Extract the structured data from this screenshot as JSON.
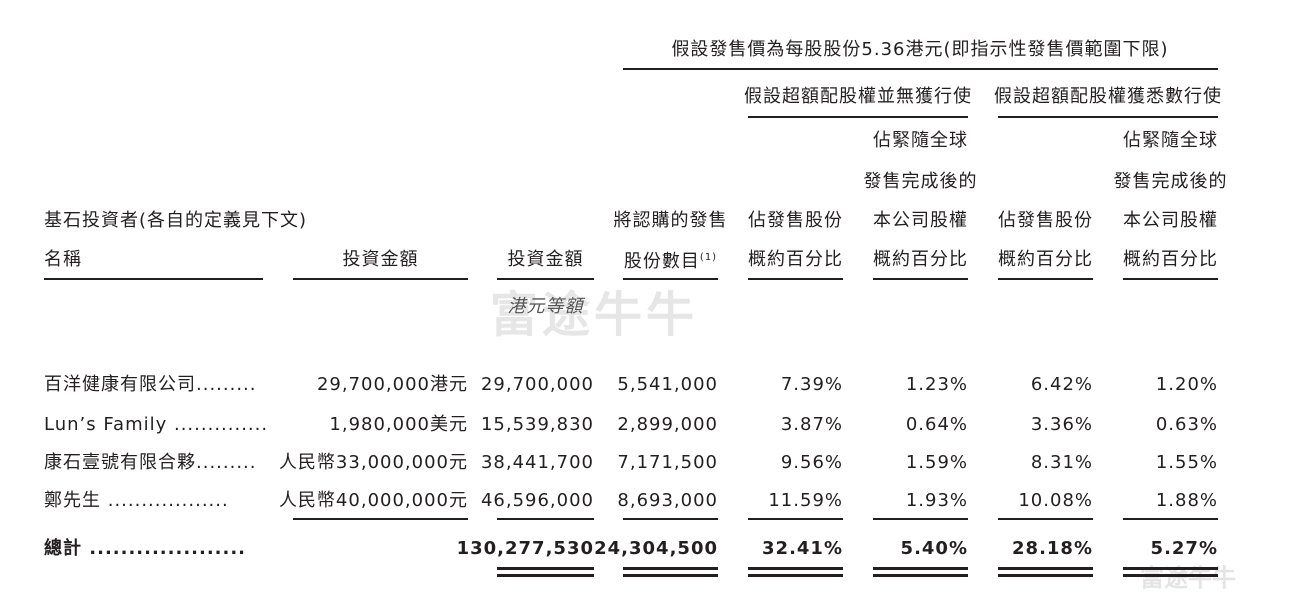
{
  "table": {
    "group_header": "假設發售價為每股股份5.36港元(即指示性發售價範圍下限)",
    "subgroups": [
      "假設超額配股權並無獲行使",
      "假設超額配股權獲悉數行使"
    ],
    "columns": [
      {
        "lines": [
          "基石投資者(各自的定義見下文)",
          "名稱"
        ]
      },
      {
        "lines": [
          "投資金額"
        ]
      },
      {
        "lines": [
          "投資金額"
        ],
        "unit": "港元等額"
      },
      {
        "lines": [
          "將認購的發售",
          "股份數目"
        ],
        "note": "(1)"
      },
      {
        "lines": [
          "佔發售股份",
          "概約百分比"
        ]
      },
      {
        "lines": [
          "佔緊隨全球",
          "發售完成後的",
          "本公司股權",
          "概約百分比"
        ]
      },
      {
        "lines": [
          "佔發售股份",
          "概約百分比"
        ]
      },
      {
        "lines": [
          "佔緊隨全球",
          "發售完成後的",
          "本公司股權",
          "概約百分比"
        ]
      }
    ],
    "rows": [
      [
        "百洋健康有限公司.........",
        "29,700,000港元",
        "29,700,000",
        "5,541,000",
        "7.39%",
        "1.23%",
        "6.42%",
        "1.20%"
      ],
      [
        "Lun’s Family ..............",
        "1,980,000美元",
        "15,539,830",
        "2,899,000",
        "3.87%",
        "0.64%",
        "3.36%",
        "0.63%"
      ],
      [
        "康石壹號有限合夥.........",
        "人民幣33,000,000元",
        "38,441,700",
        "7,171,500",
        "9.56%",
        "1.59%",
        "8.31%",
        "1.55%"
      ],
      [
        "鄭先生 ..................",
        "人民幣40,000,000元",
        "46,596,000",
        "8,693,000",
        "11.59%",
        "1.93%",
        "10.08%",
        "1.88%"
      ]
    ],
    "total": [
      "總計 ....................",
      "130,277,530",
      "24,304,500",
      "32.41%",
      "5.40%",
      "28.18%",
      "5.27%"
    ],
    "watermark": "富途牛牛"
  }
}
